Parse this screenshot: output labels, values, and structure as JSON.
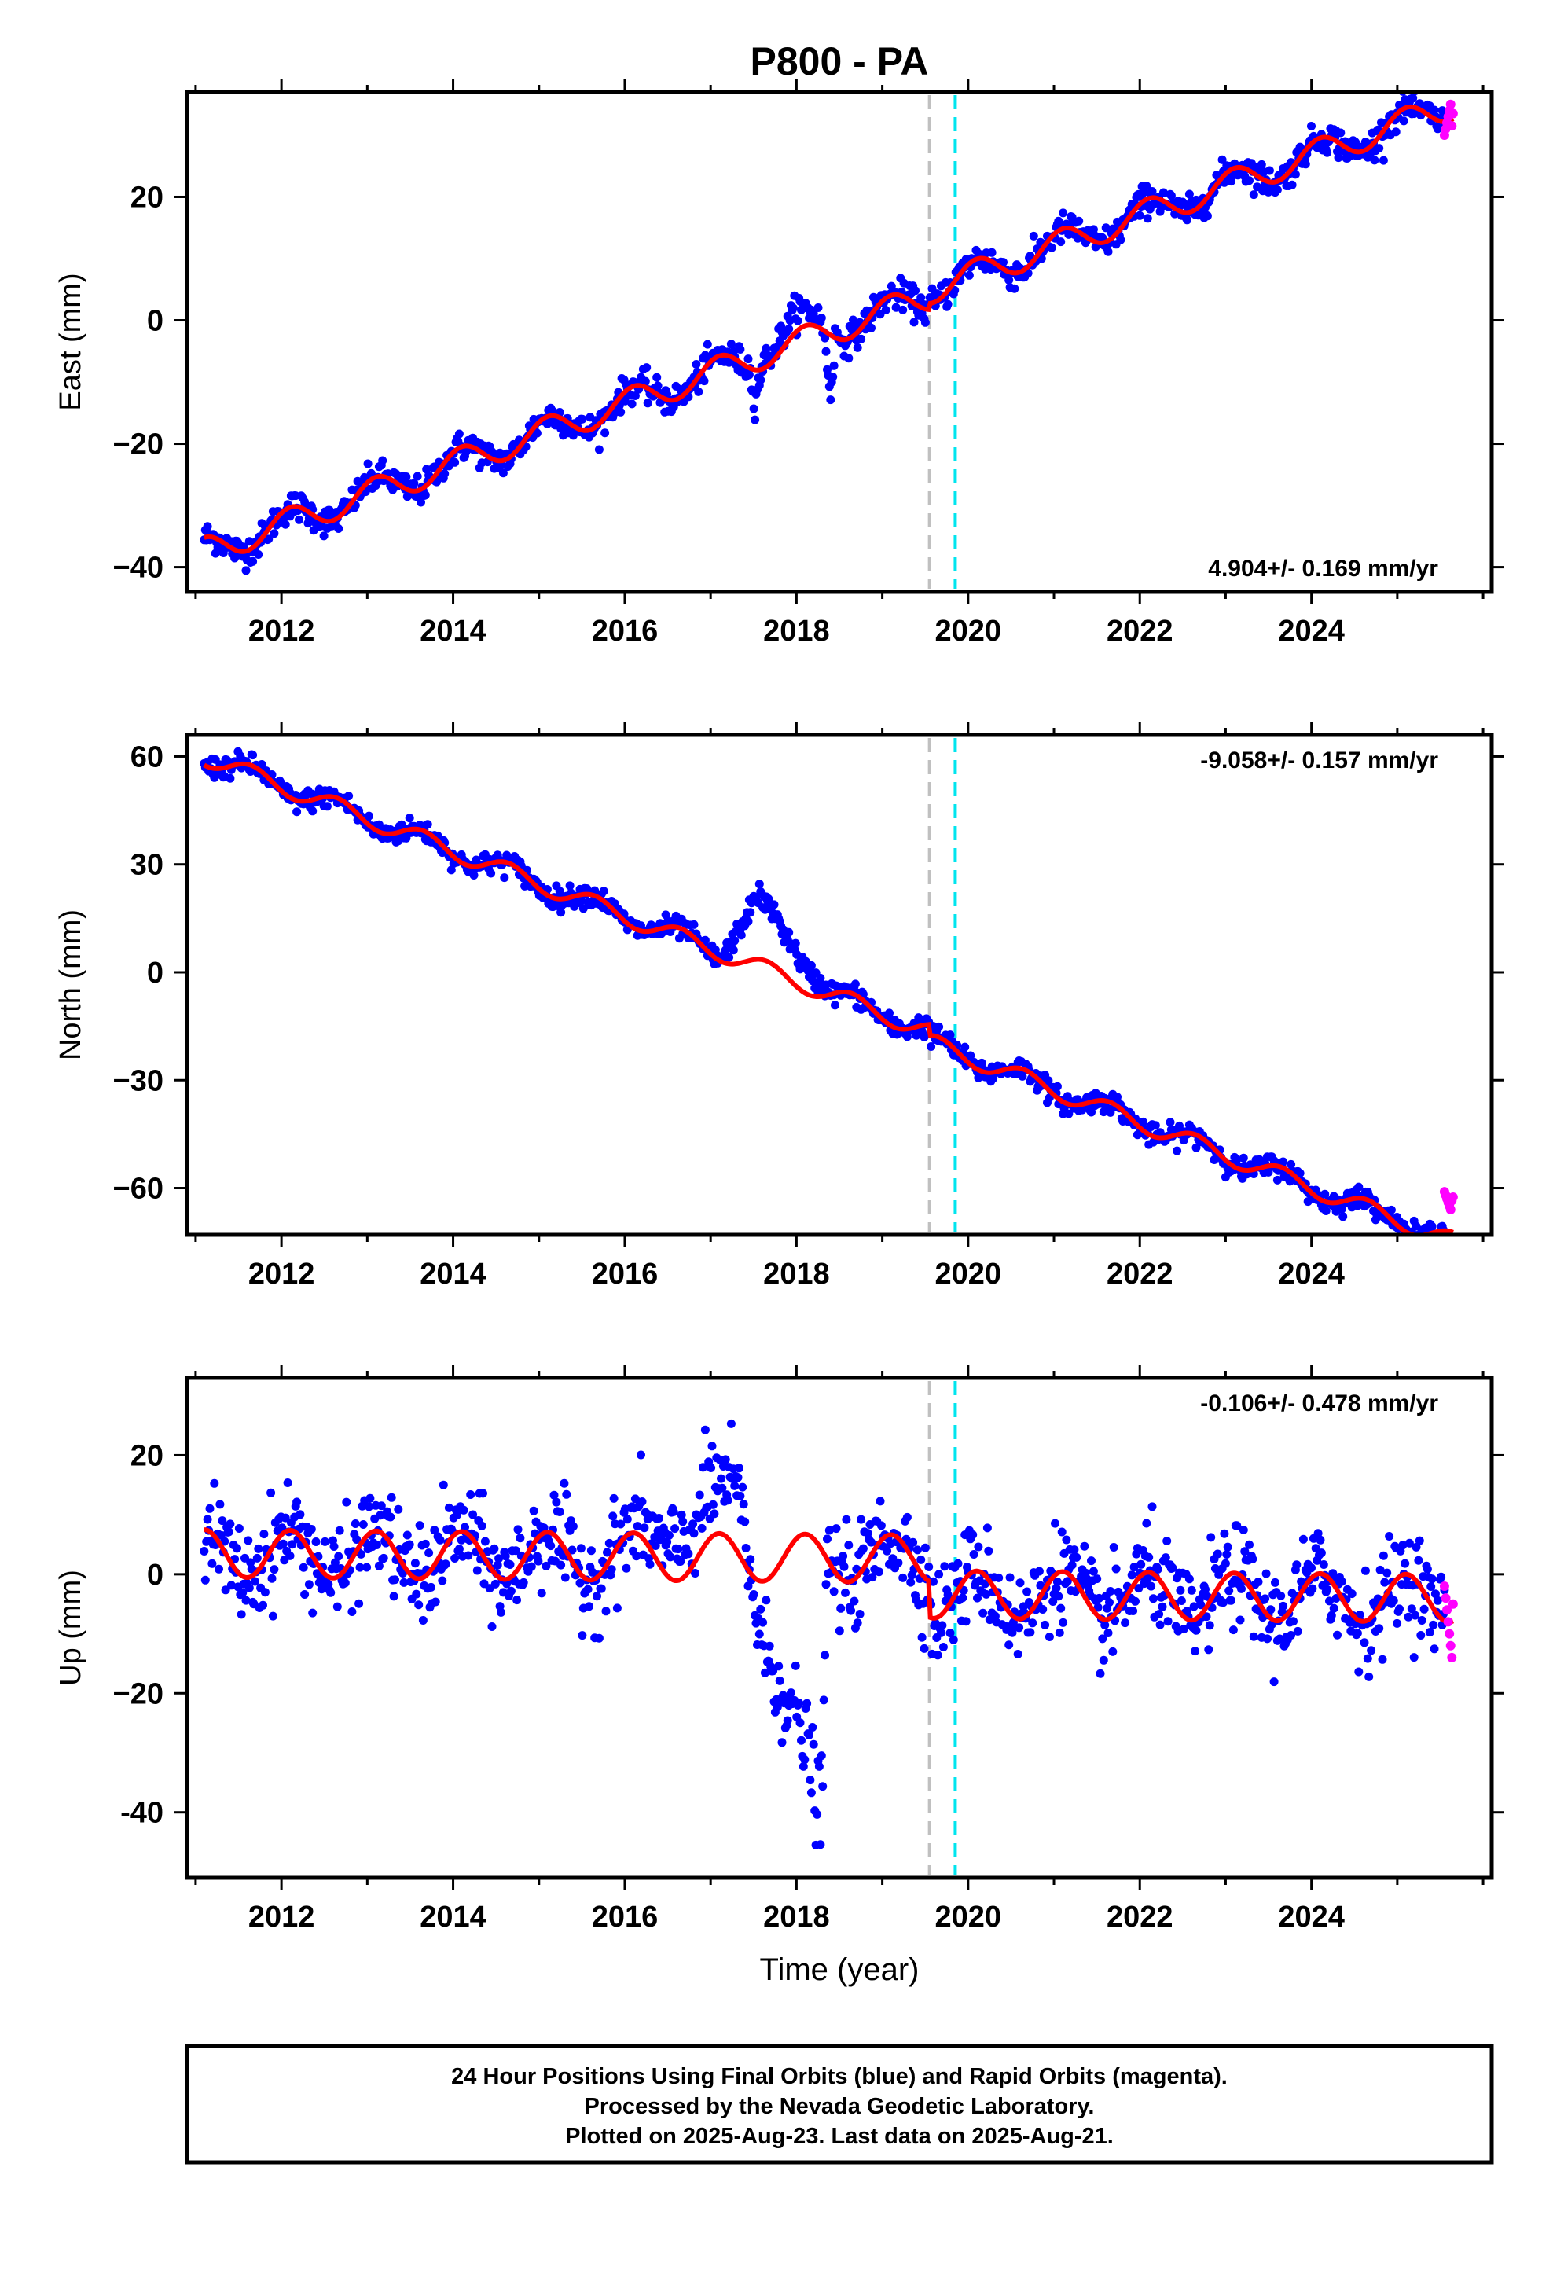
{
  "title": "P800 - PA",
  "colors": {
    "final_orbits": "#0000ff",
    "rapid_orbits": "#ff00ff",
    "model_fit": "#ff0000",
    "event_line_grey": "#c0c0c0",
    "event_line_cyan": "#00e5ee"
  },
  "chart_data": [
    {
      "type": "scatter",
      "panel": "east",
      "ylabel": "East (mm)",
      "xlabel": "",
      "xlim": [
        2010.9,
        2026.1
      ],
      "ylim": [
        -44,
        37
      ],
      "xticks": [
        2012,
        2014,
        2016,
        2018,
        2020,
        2022,
        2024
      ],
      "xtick_labels": [
        "2012",
        "2014",
        "2016",
        "2018",
        "2020",
        "2022",
        "2024"
      ],
      "yticks": [
        -40,
        -20,
        0,
        20
      ],
      "ytick_labels": [
        "−40",
        "−20",
        "0",
        "20"
      ],
      "rate_text": "4.904+/- 0.169 mm/yr",
      "rate_position": "bottom-right",
      "event_lines": [
        {
          "x": 2019.55,
          "color": "grey"
        },
        {
          "x": 2019.85,
          "color": "cyan"
        }
      ],
      "trend": {
        "t0": 2011.1,
        "y0": -37.5,
        "rate": 4.904
      },
      "seasonal": {
        "amplitude": 2.3,
        "phase_year": 2011.85
      },
      "offsets": [
        {
          "after": 2019.55,
          "delta": 1.0
        }
      ],
      "scatter_noise_mm": 1.2,
      "transients": [
        {
          "from": 2017.5,
          "to": 2018.45,
          "peak": 2018.0,
          "delta": 3.5
        },
        {
          "from": 2017.45,
          "to": 2017.6,
          "peak": 2017.52,
          "delta": -5
        },
        {
          "from": 2018.3,
          "to": 2018.45,
          "peak": 2018.4,
          "delta": -10
        }
      ],
      "rapid_points": {
        "from": 2025.55,
        "to": 2025.65,
        "values": [
          30,
          31,
          32,
          33,
          34,
          35,
          31.5,
          33.5
        ]
      }
    },
    {
      "type": "scatter",
      "panel": "north",
      "ylabel": "North (mm)",
      "xlabel": "",
      "xlim": [
        2010.9,
        2026.1
      ],
      "ylim": [
        -73,
        66
      ],
      "xticks": [
        2012,
        2014,
        2016,
        2018,
        2020,
        2022,
        2024
      ],
      "xtick_labels": [
        "2012",
        "2014",
        "2016",
        "2018",
        "2020",
        "2022",
        "2024"
      ],
      "yticks": [
        -60,
        -30,
        0,
        30,
        60
      ],
      "ytick_labels": [
        "−60",
        "−30",
        "0",
        "30",
        "60"
      ],
      "rate_text": "-9.058+/- 0.157 mm/yr",
      "rate_position": "top-right",
      "event_lines": [
        {
          "x": 2019.55,
          "color": "grey"
        },
        {
          "x": 2019.85,
          "color": "cyan"
        }
      ],
      "trend": {
        "t0": 2011.1,
        "y0": 60,
        "rate": -9.058
      },
      "seasonal": {
        "amplitude": 2.5,
        "phase_year": 2011.4
      },
      "offsets": [
        {
          "after": 2019.55,
          "delta": -3.0
        }
      ],
      "scatter_noise_mm": 1.5,
      "transients": [
        {
          "from": 2017.1,
          "to": 2018.45,
          "peak": 2017.55,
          "delta": 18
        }
      ],
      "rapid_points": {
        "from": 2025.55,
        "to": 2025.65,
        "values": [
          -61,
          -62,
          -63,
          -64,
          -65,
          -66,
          -63.5,
          -62.5
        ]
      }
    },
    {
      "type": "scatter",
      "panel": "up",
      "ylabel": "Up (mm)",
      "xlabel": "Time (year)",
      "xlim": [
        2010.9,
        2026.1
      ],
      "ylim": [
        -51,
        33
      ],
      "xticks": [
        2012,
        2014,
        2016,
        2018,
        2020,
        2022,
        2024
      ],
      "xtick_labels": [
        "2012",
        "2014",
        "2016",
        "2018",
        "2020",
        "2022",
        "2024"
      ],
      "yticks": [
        -40,
        -20,
        0,
        20
      ],
      "ytick_labels": [
        "-40",
        "−20",
        "0",
        "20"
      ],
      "rate_text": "-0.106+/- 0.478 mm/yr",
      "rate_position": "top-right",
      "event_lines": [
        {
          "x": 2019.55,
          "color": "grey"
        },
        {
          "x": 2019.85,
          "color": "cyan"
        }
      ],
      "trend": {
        "t0": 2011.1,
        "y0": 3.5,
        "rate": -0.106
      },
      "seasonal": {
        "amplitude": 4.0,
        "phase_year": 2011.85
      },
      "offsets": [
        {
          "after": 2019.55,
          "delta": -6.0
        }
      ],
      "scatter_noise_mm": 4.0,
      "transients": [
        {
          "from": 2015.9,
          "to": 2017.55,
          "peak": 2017.3,
          "delta": 10
        },
        {
          "from": 2017.4,
          "to": 2018.35,
          "peak": 2018.3,
          "delta": -45
        }
      ],
      "rapid_points": {
        "from": 2025.55,
        "to": 2025.65,
        "values": [
          -2,
          -4,
          -6,
          -8,
          -10,
          -12,
          -14,
          -5
        ]
      }
    }
  ],
  "footer": {
    "line1": "24 Hour Positions Using Final Orbits (blue) and Rapid Orbits (magenta).",
    "line2": "Processed by the Nevada Geodetic Laboratory.",
    "line3": "Plotted on 2025-Aug-23. Last data on 2025-Aug-21."
  }
}
